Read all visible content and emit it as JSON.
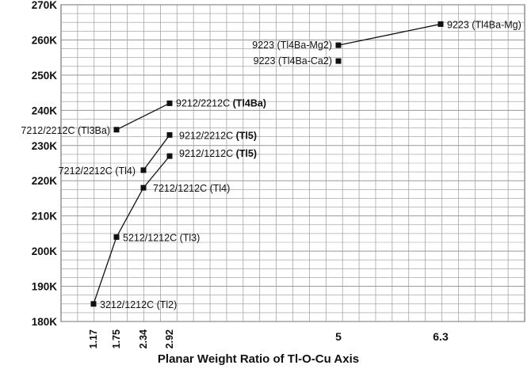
{
  "chart_data": {
    "type": "scatter",
    "title": "",
    "xlabel": "Planar Weight Ratio of Tl-O-Cu Axis",
    "ylabel": "",
    "x_ticks": [
      "1.17",
      "1.75",
      "2.34",
      "2.92",
      "5",
      "6.3"
    ],
    "y_ticks": [
      "180K",
      "190K",
      "200K",
      "210K",
      "220K",
      "230K",
      "240K",
      "250K",
      "260K",
      "270K"
    ],
    "ylim": [
      180,
      270
    ],
    "grid": true,
    "points": [
      {
        "x": 1.17,
        "y": 185,
        "label": "3212/1212C (Tl2)",
        "label_bold": ""
      },
      {
        "x": 1.75,
        "y": 204,
        "label": "5212/1212C (Tl3)",
        "label_bold": ""
      },
      {
        "x": 2.34,
        "y": 218,
        "label": "7212/1212C (Tl4)",
        "label_bold": ""
      },
      {
        "x": 2.92,
        "y": 227,
        "label": "9212/1212C ",
        "label_bold": "(Tl5)"
      },
      {
        "x": 2.34,
        "y": 223,
        "label": "7212/2212C (Tl4)",
        "label_bold": ""
      },
      {
        "x": 2.92,
        "y": 233,
        "label": "9212/2212C ",
        "label_bold": "(Tl5)"
      },
      {
        "x": 1.75,
        "y": 234.5,
        "label": "7212/2212C (Tl3Ba)",
        "label_bold": ""
      },
      {
        "x": 2.92,
        "y": 242,
        "label": "9212/2212C ",
        "label_bold": "(Tl4Ba)"
      },
      {
        "x": 5,
        "y": 258.5,
        "label": "9223 (Tl4Ba-Mg2)",
        "label_bold": ""
      },
      {
        "x": 5,
        "y": 254,
        "label": "9223 (Tl4Ba-Ca2)",
        "label_bold": ""
      },
      {
        "x": 6.3,
        "y": 264.5,
        "label": "9223 (Tl4Ba-Mg)",
        "label_bold": ""
      }
    ],
    "lines": [
      [
        0,
        1,
        2,
        3
      ],
      [
        4,
        5
      ],
      [
        6,
        7
      ],
      [
        8,
        10
      ]
    ],
    "colors": {
      "marker": "#111111",
      "line": "#111111",
      "grid": "#999999"
    }
  }
}
